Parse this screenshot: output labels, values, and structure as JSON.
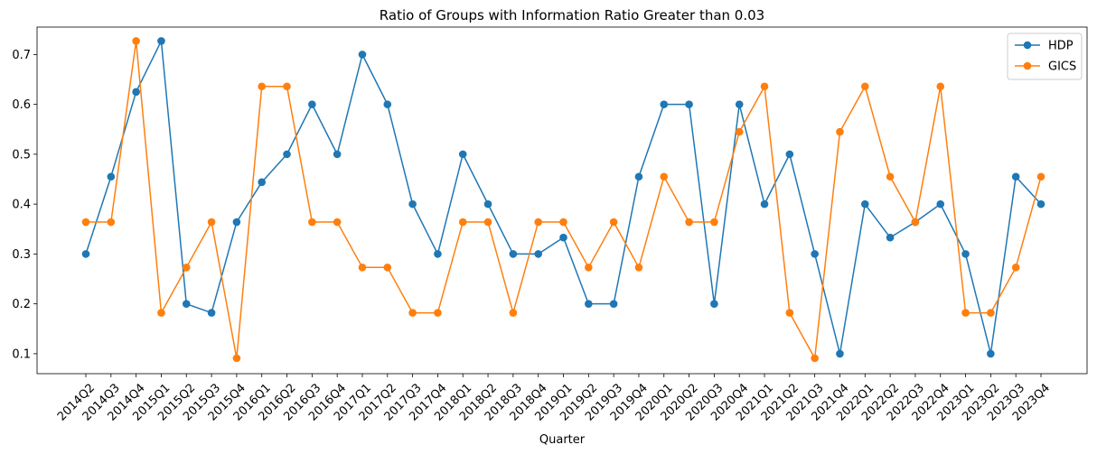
{
  "chart_data": {
    "type": "line",
    "title": "Ratio of Groups with Information Ratio Greater than 0.03",
    "xlabel": "Quarter",
    "ylabel": "",
    "ylim": [
      0.06,
      0.755
    ],
    "yticks": [
      0.1,
      0.2,
      0.3,
      0.4,
      0.5,
      0.6,
      0.7
    ],
    "ytick_labels": [
      "0.1",
      "0.2",
      "0.3",
      "0.4",
      "0.5",
      "0.6",
      "0.7"
    ],
    "grid": false,
    "legend_position": "top-right",
    "categories": [
      "2014Q2",
      "2014Q3",
      "2014Q4",
      "2015Q1",
      "2015Q2",
      "2015Q3",
      "2015Q4",
      "2016Q1",
      "2016Q2",
      "2016Q3",
      "2016Q4",
      "2017Q1",
      "2017Q2",
      "2017Q3",
      "2017Q4",
      "2018Q1",
      "2018Q2",
      "2018Q3",
      "2018Q4",
      "2019Q1",
      "2019Q2",
      "2019Q3",
      "2019Q4",
      "2020Q1",
      "2020Q2",
      "2020Q3",
      "2020Q4",
      "2021Q1",
      "2021Q2",
      "2021Q3",
      "2021Q4",
      "2022Q1",
      "2022Q2",
      "2022Q3",
      "2022Q4",
      "2023Q1",
      "2023Q2",
      "2023Q3",
      "2023Q4"
    ],
    "series": [
      {
        "name": "HDP",
        "color": "#1f77b4",
        "values": [
          0.3,
          0.455,
          0.625,
          0.727,
          0.2,
          0.182,
          0.364,
          0.444,
          0.5,
          0.6,
          0.5,
          0.7,
          0.6,
          0.4,
          0.3,
          0.5,
          0.4,
          0.3,
          0.3,
          0.333,
          0.2,
          0.2,
          0.455,
          0.6,
          0.6,
          0.2,
          0.6,
          0.4,
          0.5,
          0.3,
          0.1,
          0.4,
          0.333,
          0.364,
          0.4,
          0.3,
          0.1,
          0.455,
          0.4
        ]
      },
      {
        "name": "GICS",
        "color": "#ff7f0e",
        "values": [
          0.364,
          0.364,
          0.727,
          0.182,
          0.273,
          0.364,
          0.091,
          0.636,
          0.636,
          0.364,
          0.364,
          0.273,
          0.273,
          0.182,
          0.182,
          0.364,
          0.364,
          0.182,
          0.364,
          0.364,
          0.273,
          0.364,
          0.273,
          0.455,
          0.364,
          0.364,
          0.545,
          0.636,
          0.182,
          0.091,
          0.545,
          0.636,
          0.455,
          0.364,
          0.636,
          0.182,
          0.182,
          0.273,
          0.455
        ]
      }
    ]
  }
}
